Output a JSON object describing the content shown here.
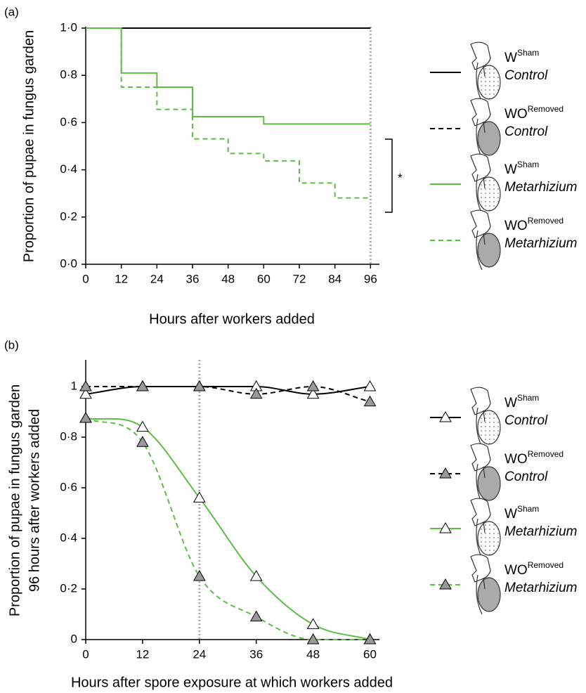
{
  "chart_data": [
    {
      "type": "step",
      "panel_label": "(a)",
      "x_label": "Hours after workers added",
      "y_label": "Proportion of pupae in fungus garden",
      "x": [
        0,
        12,
        24,
        36,
        48,
        60,
        72,
        84,
        96
      ],
      "series": [
        {
          "name": "W",
          "superscript": "Sham",
          "treatment": "Control",
          "color": "#000000",
          "dash": false,
          "values": [
            1,
            1,
            1,
            1,
            1,
            1,
            1,
            1,
            1
          ]
        },
        {
          "name": "WO",
          "superscript": "Removed",
          "treatment": "Control",
          "color": "#000000",
          "dash": true,
          "values": [
            1,
            1,
            1,
            1,
            1,
            1,
            1,
            1,
            1
          ]
        },
        {
          "name": "W",
          "superscript": "Sham",
          "treatment": "Metarhizium",
          "color": "#5cbf45",
          "dash": false,
          "values": [
            1,
            0.81,
            0.75,
            0.625,
            0.625,
            0.594,
            0.594,
            0.594,
            0.594
          ]
        },
        {
          "name": "WO",
          "superscript": "Removed",
          "treatment": "Metarhizium",
          "color": "#5cbf45",
          "dash": true,
          "values": [
            1,
            0.75,
            0.656,
            0.531,
            0.469,
            0.438,
            0.344,
            0.281,
            0.281
          ]
        }
      ],
      "xlim": [
        0,
        99
      ],
      "ylim": [
        0,
        1
      ],
      "xticks": [
        0,
        12,
        24,
        36,
        48,
        60,
        72,
        84,
        96
      ],
      "yticks": [
        {
          "value": 0,
          "label": "0·0"
        },
        {
          "value": 0.2,
          "label": "0·2"
        },
        {
          "value": 0.4,
          "label": "0·4"
        },
        {
          "value": 0.6,
          "label": "0·6"
        },
        {
          "value": 0.8,
          "label": "0·8"
        },
        {
          "value": 1,
          "label": "1·0"
        }
      ],
      "reference_x": 96,
      "annotation": "*"
    },
    {
      "type": "line",
      "panel_label": "(b)",
      "x_label": "Hours after spore exposure at which workers added",
      "y_label": [
        "Proportion of pupae in fungus garden",
        "96 hours after workers added"
      ],
      "x": [
        0,
        12,
        24,
        36,
        48,
        60
      ],
      "series": [
        {
          "name": "W",
          "superscript": "Sham",
          "treatment": "Control",
          "color": "#000000",
          "dash": false,
          "marker_fill": "#ffffff",
          "values": [
            0.97,
            1,
            1,
            1,
            0.97,
            1
          ]
        },
        {
          "name": "WO",
          "superscript": "Removed",
          "treatment": "Control",
          "color": "#000000",
          "dash": true,
          "marker_fill": "#999999",
          "values": [
            1,
            1,
            1,
            0.97,
            1,
            0.94
          ]
        },
        {
          "name": "W",
          "superscript": "Sham",
          "treatment": "Metarhizium",
          "color": "#5cbf45",
          "dash": false,
          "marker_fill": "#ffffff",
          "values": [
            0.875,
            0.84,
            0.56,
            0.25,
            0.06,
            0
          ]
        },
        {
          "name": "WO",
          "superscript": "Removed",
          "treatment": "Metarhizium",
          "color": "#5cbf45",
          "dash": true,
          "marker_fill": "#999999",
          "values": [
            0.875,
            0.78,
            0.25,
            0.09,
            0,
            0
          ]
        }
      ],
      "xlim": [
        0,
        62
      ],
      "ylim": [
        0,
        1.1
      ],
      "xticks": [
        0,
        12,
        24,
        36,
        48,
        60
      ],
      "yticks": [
        0,
        {
          "value": 0.2,
          "label": "0·2"
        },
        {
          "value": 0.4,
          "label": "0·4"
        },
        {
          "value": 0.6,
          "label": "0·6"
        },
        {
          "value": 0.8,
          "label": "0·8"
        },
        1
      ],
      "reference_x": 24
    }
  ]
}
